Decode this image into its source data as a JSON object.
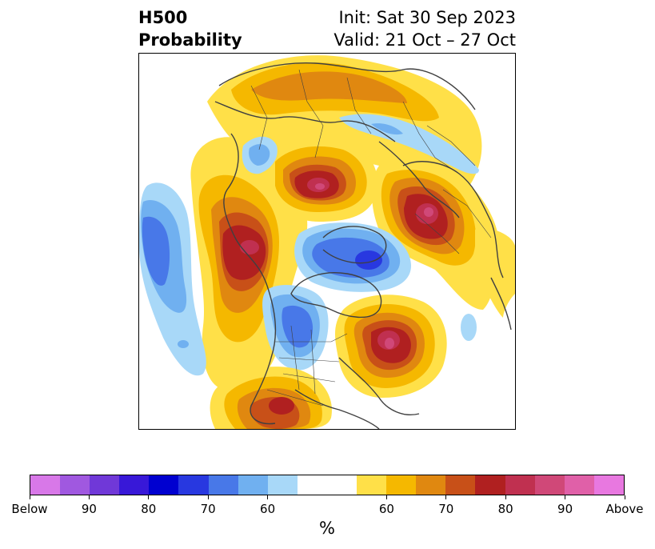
{
  "header": {
    "title_line1": "H500",
    "title_line2": "Probability",
    "init": "Init: Sat 30 Sep 2023",
    "valid": "Valid: 21 Oct – 27 Oct"
  },
  "colorbar": {
    "colors": [
      "#d878e8",
      "#a058e0",
      "#7038d8",
      "#3818d8",
      "#0000d0",
      "#2838e0",
      "#4878e8",
      "#70b0f0",
      "#a8d8f8",
      "#ffffff",
      "#ffe048",
      "#f5b800",
      "#e08810",
      "#c85018",
      "#b02020",
      "#c03050",
      "#d04878",
      "#e060a8",
      "#e878e0"
    ],
    "tick_labels": [
      "Below",
      "90",
      "80",
      "70",
      "60",
      "60",
      "70",
      "80",
      "90",
      "Above"
    ],
    "unit": "%"
  },
  "map": {
    "projection": "north-polar-stereographic",
    "colors": {
      "coast": "#404040",
      "below_light": "#a8d8f8",
      "below_mid": "#70b0f0",
      "below_strong": "#4878e8",
      "below_deep": "#2838e0",
      "above_light": "#ffe048",
      "above_mid": "#f5b800",
      "above_orange": "#e08810",
      "above_rust": "#c85018",
      "above_red": "#b02020",
      "above_pink": "#c03050",
      "above_magenta": "#d04878"
    }
  }
}
